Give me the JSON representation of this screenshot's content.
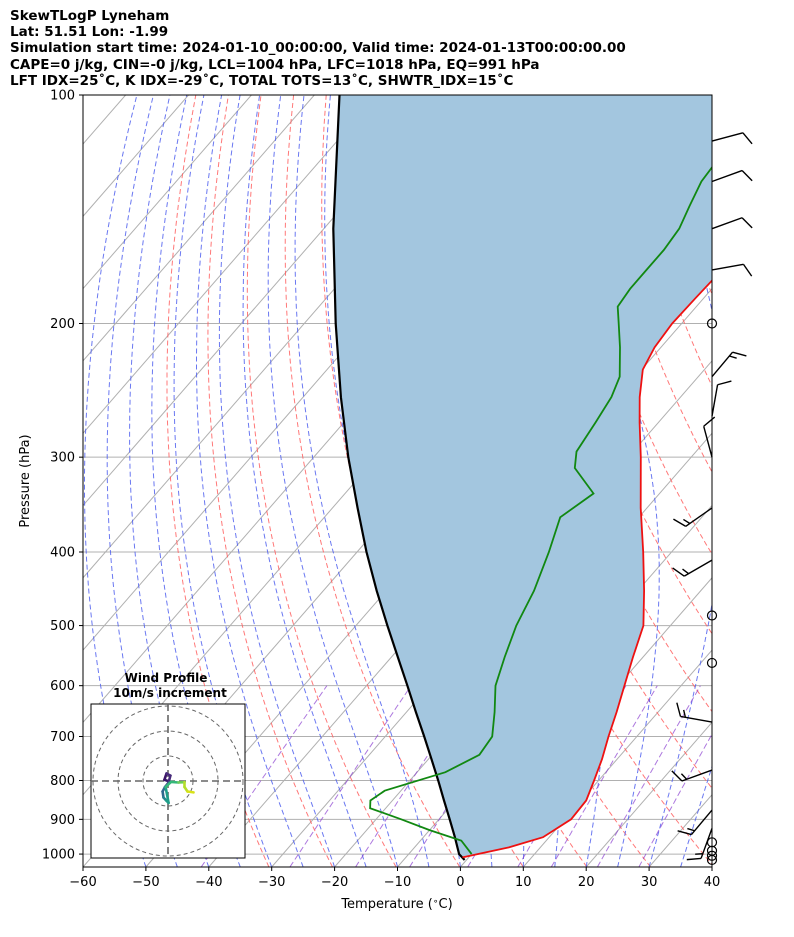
{
  "header": {
    "line1": "SkewTLogP Lyneham",
    "line2": "Lat: 51.51   Lon: -1.99",
    "line3": "Simulation start time: 2024-01-10_00:00:00, Valid time: 2024-01-13T00:00:00.00",
    "line4": "CAPE=0 j/kg, CIN=-0 j/kg, LCL=1004 hPa, LFC=1018 hPa, EQ=991 hPa",
    "line5": "LFT IDX=25˚C, K IDX=-29˚C, TOTAL TOTS=13˚C, SHWTR_IDX=15˚C"
  },
  "colors": {
    "temperature": "#ee1111",
    "dewpoint": "#118811",
    "parcel": "#000000",
    "cape_fill": "#a3c6df",
    "dry_adiabat": "#ff6060",
    "moist_adiabat": "#5060ee",
    "mixing_ratio": "#8a3fd0",
    "isotherm": "#b0b0b0"
  },
  "chart_data": {
    "type": "skewt",
    "xlabel": "Temperature ($^\\circ$C)",
    "ylabel": "Pressure (hPa)",
    "xlim": [
      -60,
      40
    ],
    "ylim": [
      1040,
      100
    ],
    "yscale": "log",
    "xticks": [
      "−60",
      "−50",
      "−40",
      "−30",
      "−20",
      "−10",
      "0",
      "10",
      "20",
      "30",
      "40"
    ],
    "yticks": [
      "100",
      "200",
      "300",
      "400",
      "500",
      "600",
      "700",
      "800",
      "900",
      "1000"
    ],
    "grid": true,
    "temperature_profile": [
      {
        "p": 1010,
        "t": -1.0
      },
      {
        "p": 980,
        "t": 5.0
      },
      {
        "p": 950,
        "t": 9.0
      },
      {
        "p": 900,
        "t": 11.0
      },
      {
        "p": 850,
        "t": 10.8
      },
      {
        "p": 800,
        "t": 9.3
      },
      {
        "p": 750,
        "t": 7.6
      },
      {
        "p": 700,
        "t": 5.5
      },
      {
        "p": 650,
        "t": 3.4
      },
      {
        "p": 600,
        "t": 1.0
      },
      {
        "p": 550,
        "t": -1.6
      },
      {
        "p": 500,
        "t": -4.3
      },
      {
        "p": 450,
        "t": -9.0
      },
      {
        "p": 400,
        "t": -14.5
      },
      {
        "p": 350,
        "t": -21.0
      },
      {
        "p": 300,
        "t": -28.0
      },
      {
        "p": 270,
        "t": -33.0
      },
      {
        "p": 250,
        "t": -36.5
      },
      {
        "p": 230,
        "t": -39.8
      },
      {
        "p": 215,
        "t": -41.0
      },
      {
        "p": 200,
        "t": -41.5
      },
      {
        "p": 185,
        "t": -41.3
      },
      {
        "p": 170,
        "t": -41.0
      },
      {
        "p": 160,
        "t": -41.0
      },
      {
        "p": 150,
        "t": -41.1
      },
      {
        "p": 140,
        "t": -41.0
      },
      {
        "p": 130,
        "t": -41.5
      },
      {
        "p": 120,
        "t": -42.5
      },
      {
        "p": 110,
        "t": -44.0
      },
      {
        "p": 100,
        "t": -45.5
      }
    ],
    "dewpoint_profile": [
      {
        "p": 1000,
        "t": 0.0
      },
      {
        "p": 960,
        "t": -3.5
      },
      {
        "p": 930,
        "t": -10.0
      },
      {
        "p": 900,
        "t": -16.0
      },
      {
        "p": 870,
        "t": -22.5
      },
      {
        "p": 850,
        "t": -23.5
      },
      {
        "p": 825,
        "t": -22.6
      },
      {
        "p": 780,
        "t": -15.5
      },
      {
        "p": 740,
        "t": -12.5
      },
      {
        "p": 700,
        "t": -13.0
      },
      {
        "p": 650,
        "t": -16.0
      },
      {
        "p": 600,
        "t": -19.5
      },
      {
        "p": 550,
        "t": -22.0
      },
      {
        "p": 500,
        "t": -24.5
      },
      {
        "p": 450,
        "t": -26.5
      },
      {
        "p": 400,
        "t": -29.5
      },
      {
        "p": 360,
        "t": -32.5
      },
      {
        "p": 335,
        "t": -30.5
      },
      {
        "p": 310,
        "t": -37.0
      },
      {
        "p": 295,
        "t": -39.0
      },
      {
        "p": 270,
        "t": -40.0
      },
      {
        "p": 250,
        "t": -41.0
      },
      {
        "p": 235,
        "t": -42.5
      },
      {
        "p": 215,
        "t": -46.5
      },
      {
        "p": 200,
        "t": -50.0
      },
      {
        "p": 190,
        "t": -52.5
      },
      {
        "p": 180,
        "t": -53.0
      },
      {
        "p": 170,
        "t": -53.0
      },
      {
        "p": 160,
        "t": -53.0
      },
      {
        "p": 150,
        "t": -53.5
      },
      {
        "p": 140,
        "t": -55.0
      },
      {
        "p": 130,
        "t": -56.5
      },
      {
        "p": 120,
        "t": -57.0
      },
      {
        "p": 100,
        "t": -58.0
      }
    ],
    "parcel_profile": [
      {
        "p": 1018,
        "t": -0.3
      },
      {
        "p": 1000,
        "t": -2.0
      },
      {
        "p": 950,
        "t": -5.0
      },
      {
        "p": 900,
        "t": -8.3
      },
      {
        "p": 850,
        "t": -11.8
      },
      {
        "p": 800,
        "t": -15.5
      },
      {
        "p": 750,
        "t": -19.5
      },
      {
        "p": 700,
        "t": -23.8
      },
      {
        "p": 650,
        "t": -28.5
      },
      {
        "p": 600,
        "t": -33.5
      },
      {
        "p": 550,
        "t": -39.0
      },
      {
        "p": 500,
        "t": -45.0
      },
      {
        "p": 450,
        "t": -51.5
      },
      {
        "p": 400,
        "t": -58.5
      },
      {
        "p": 350,
        "t": -66.0
      },
      {
        "p": 300,
        "t": -74.5
      },
      {
        "p": 250,
        "t": -84.0
      },
      {
        "p": 200,
        "t": -95.0
      },
      {
        "p": 150,
        "t": -108.5
      },
      {
        "p": 100,
        "t": -126.0
      }
    ],
    "wind_barbs": [
      {
        "p": 1018,
        "speed_kt": 0
      },
      {
        "p": 1005,
        "speed_kt": 0
      },
      {
        "p": 990,
        "speed_kt": 0
      },
      {
        "p": 965,
        "speed_kt": 0
      },
      {
        "p": 925,
        "speed_kt": 15,
        "dir": 200
      },
      {
        "p": 875,
        "speed_kt": 15,
        "dir": 220
      },
      {
        "p": 775,
        "speed_kt": 15,
        "dir": 250
      },
      {
        "p": 670,
        "speed_kt": 15,
        "dir": 280
      },
      {
        "p": 560,
        "speed_kt": 0
      },
      {
        "p": 485,
        "speed_kt": 0
      },
      {
        "p": 410,
        "speed_kt": 15,
        "dir": 240
      },
      {
        "p": 350,
        "speed_kt": 15,
        "dir": 235
      },
      {
        "p": 300,
        "speed_kt": 10,
        "dir": 345
      },
      {
        "p": 265,
        "speed_kt": 10,
        "dir": 10
      },
      {
        "p": 235,
        "speed_kt": 15,
        "dir": 40
      },
      {
        "p": 200,
        "speed_kt": 0
      },
      {
        "p": 170,
        "speed_kt": 10,
        "dir": 80
      },
      {
        "p": 150,
        "speed_kt": 10,
        "dir": 70
      },
      {
        "p": 130,
        "speed_kt": 10,
        "dir": 70
      },
      {
        "p": 115,
        "speed_kt": 10,
        "dir": 75
      }
    ],
    "inset": {
      "title_line1": "Wind Profile",
      "title_line2": "10m/s increment",
      "rings": 3,
      "hodograph": [
        {
          "u": 0.0,
          "v": 0.0
        },
        {
          "u": -1.2,
          "v": 0.4
        },
        {
          "u": -0.5,
          "v": 2.5
        },
        {
          "u": 0.8,
          "v": 1.8
        },
        {
          "u": 0.2,
          "v": -0.5
        },
        {
          "u": -1.0,
          "v": -2.0
        },
        {
          "u": -1.8,
          "v": -3.5
        },
        {
          "u": -1.5,
          "v": -5.5
        },
        {
          "u": -0.6,
          "v": -6.5
        },
        {
          "u": 0.2,
          "v": -7.3
        },
        {
          "u": -0.8,
          "v": -2.0
        },
        {
          "u": 1.0,
          "v": -0.3
        },
        {
          "u": 3.5,
          "v": -0.5
        },
        {
          "u": 5.5,
          "v": -0.4
        },
        {
          "u": 5.5,
          "v": -2.0
        },
        {
          "u": 6.5,
          "v": -3.5
        },
        {
          "u": 8.5,
          "v": -3.8
        }
      ]
    }
  }
}
